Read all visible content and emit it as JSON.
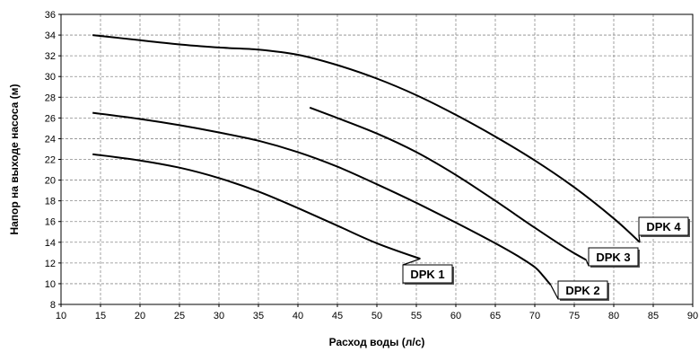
{
  "chart_data": {
    "type": "line",
    "xlabel": "Расход воды (л/с)",
    "ylabel": "Напор на выходе насоса (м)",
    "xlim": [
      10,
      90
    ],
    "ylim": [
      8,
      36
    ],
    "x_ticks": [
      "10",
      "15",
      "20",
      "25",
      "30",
      "35",
      "40",
      "45",
      "50",
      "55",
      "60",
      "65",
      "70",
      "75",
      "80",
      "85",
      "90"
    ],
    "y_ticks": [
      "8",
      "10",
      "12",
      "14",
      "16",
      "18",
      "20",
      "22",
      "24",
      "26",
      "28",
      "30",
      "32",
      "34",
      "36"
    ],
    "grid": true,
    "series": [
      {
        "name": "DPK 1",
        "points": [
          [
            14,
            22.5
          ],
          [
            20,
            21.9
          ],
          [
            25,
            21.2
          ],
          [
            30,
            20.2
          ],
          [
            35,
            18.9
          ],
          [
            40,
            17.3
          ],
          [
            45,
            15.6
          ],
          [
            50,
            13.9
          ],
          [
            55.5,
            12.4
          ]
        ]
      },
      {
        "name": "DPK 2",
        "points": [
          [
            14,
            26.5
          ],
          [
            20,
            25.9
          ],
          [
            25,
            25.3
          ],
          [
            30,
            24.6
          ],
          [
            35,
            23.8
          ],
          [
            40,
            22.7
          ],
          [
            45,
            21.3
          ],
          [
            50,
            19.6
          ],
          [
            55,
            17.8
          ],
          [
            60,
            15.9
          ],
          [
            65,
            13.9
          ],
          [
            68,
            12.6
          ],
          [
            70,
            11.6
          ],
          [
            71,
            10.8
          ],
          [
            72,
            9.9
          ]
        ]
      },
      {
        "name": "DPK 3",
        "points": [
          [
            41.5,
            27
          ],
          [
            45,
            26
          ],
          [
            50,
            24.5
          ],
          [
            55,
            22.7
          ],
          [
            60,
            20.5
          ],
          [
            65,
            18
          ],
          [
            70,
            15.4
          ],
          [
            74,
            13.4
          ],
          [
            76.5,
            12.3
          ]
        ]
      },
      {
        "name": "DPK 4",
        "points": [
          [
            14,
            34
          ],
          [
            20,
            33.5
          ],
          [
            25,
            33.1
          ],
          [
            30,
            32.8
          ],
          [
            35,
            32.6
          ],
          [
            40,
            32.1
          ],
          [
            45,
            31.1
          ],
          [
            50,
            29.8
          ],
          [
            55,
            28.2
          ],
          [
            60,
            26.3
          ],
          [
            65,
            24.2
          ],
          [
            70,
            21.9
          ],
          [
            75,
            19.3
          ],
          [
            80,
            16.3
          ],
          [
            83.3,
            14
          ]
        ]
      }
    ]
  }
}
